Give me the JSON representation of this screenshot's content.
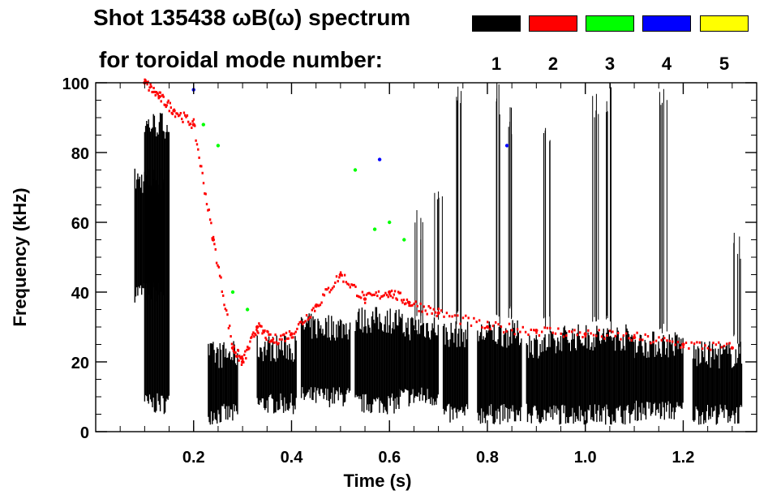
{
  "title_line1": "Shot 135438 ωB(ω) spectrum",
  "title_line2": "for toroidal mode number:",
  "legend": [
    {
      "label": "1",
      "color": "#000000"
    },
    {
      "label": "2",
      "color": "#ff0000"
    },
    {
      "label": "3",
      "color": "#00ff00"
    },
    {
      "label": "4",
      "color": "#0000ff"
    },
    {
      "label": "5",
      "color": "#ffff00"
    }
  ],
  "chart_data": {
    "type": "heatmap",
    "xlabel": "Time (s)",
    "ylabel": "Frequency (kHz)",
    "xlim": [
      0.0,
      1.35
    ],
    "ylim": [
      0,
      100
    ],
    "xticks": [
      "0.2",
      "0.4",
      "0.6",
      "0.8",
      "1.0",
      "1.2"
    ],
    "yticks": [
      "0",
      "20",
      "40",
      "60",
      "80",
      "100"
    ],
    "xtick_values": [
      0.2,
      0.4,
      0.6,
      0.8,
      1.0,
      1.2
    ],
    "ytick_values": [
      0,
      20,
      40,
      60,
      80,
      100
    ],
    "series": [
      {
        "name": "1",
        "color": "#000000",
        "blobs": [
          {
            "t0": 0.08,
            "t1": 0.14,
            "f0": 40,
            "f1": 72
          },
          {
            "t0": 0.1,
            "t1": 0.15,
            "f0": 8,
            "f1": 88
          },
          {
            "t0": 0.23,
            "t1": 0.29,
            "f0": 5,
            "f1": 22
          },
          {
            "t0": 0.33,
            "t1": 0.41,
            "f0": 8,
            "f1": 24
          },
          {
            "t0": 0.42,
            "t1": 0.52,
            "f0": 10,
            "f1": 30
          },
          {
            "t0": 0.53,
            "t1": 0.62,
            "f0": 8,
            "f1": 32
          },
          {
            "t0": 0.62,
            "t1": 0.7,
            "f0": 10,
            "f1": 30
          },
          {
            "t0": 0.71,
            "t1": 0.76,
            "f0": 5,
            "f1": 28
          },
          {
            "t0": 0.78,
            "t1": 0.87,
            "f0": 5,
            "f1": 28
          },
          {
            "t0": 0.88,
            "t1": 0.95,
            "f0": 5,
            "f1": 25
          },
          {
            "t0": 0.95,
            "t1": 1.1,
            "f0": 5,
            "f1": 27
          },
          {
            "t0": 1.1,
            "t1": 1.2,
            "f0": 6,
            "f1": 25
          },
          {
            "t0": 1.22,
            "t1": 1.32,
            "f0": 5,
            "f1": 22
          }
        ],
        "streaks": [
          {
            "t": 0.66,
            "f0": 28,
            "f1": 65
          },
          {
            "t": 0.7,
            "f0": 30,
            "f1": 72
          },
          {
            "t": 0.74,
            "f0": 30,
            "f1": 100
          },
          {
            "t": 0.82,
            "f0": 30,
            "f1": 100
          },
          {
            "t": 0.85,
            "f0": 30,
            "f1": 95
          },
          {
            "t": 0.92,
            "f0": 28,
            "f1": 92
          },
          {
            "t": 1.02,
            "f0": 28,
            "f1": 100
          },
          {
            "t": 1.05,
            "f0": 28,
            "f1": 100
          },
          {
            "t": 1.16,
            "f0": 26,
            "f1": 100
          },
          {
            "t": 1.31,
            "f0": 22,
            "f1": 58
          }
        ]
      },
      {
        "name": "2",
        "color": "#ff0000",
        "x": [
          0.1,
          0.13,
          0.16,
          0.2,
          0.24,
          0.28,
          0.3,
          0.33,
          0.36,
          0.4,
          0.45,
          0.5,
          0.55,
          0.6,
          0.64,
          0.7,
          0.8,
          0.9,
          1.0,
          1.1,
          1.2,
          1.3
        ],
        "y": [
          100,
          96,
          92,
          88,
          55,
          24,
          20,
          30,
          26,
          28,
          36,
          45,
          38,
          40,
          37,
          34,
          30,
          29,
          28,
          27,
          25,
          24
        ]
      },
      {
        "name": "3",
        "color": "#00ff00",
        "x": [
          0.22,
          0.25,
          0.28,
          0.31,
          0.53,
          0.57,
          0.6,
          0.63
        ],
        "y": [
          88,
          82,
          40,
          35,
          75,
          58,
          60,
          55
        ]
      },
      {
        "name": "4",
        "color": "#0000ff",
        "x": [
          0.2,
          0.58,
          0.84
        ],
        "y": [
          98,
          78,
          82
        ]
      }
    ]
  }
}
